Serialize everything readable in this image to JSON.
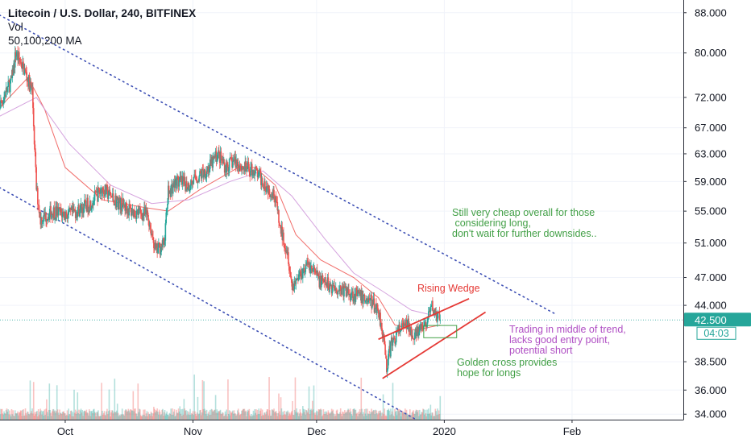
{
  "header": {
    "title": "Litecoin / U.S. Dollar, 240, BITFINEX",
    "indicator_volume": "Vol",
    "indicator_ma": "50,100,200 MA"
  },
  "price_tag": {
    "value": "42.500",
    "countdown": "04:03",
    "color": "#26a69a"
  },
  "annotations": {
    "cheap": "Still very cheap overall for those\n considering long,\ndon't wait for further downsides..",
    "wedge": "Rising Wedge",
    "trading": "Trading in middle of trend,\nlacks good entry point,\npotential short",
    "golden": "Golden cross provides\nhope for longs"
  },
  "colors": {
    "up": "#26a69a",
    "down": "#ef5350",
    "ma_fast": "#ef5350",
    "ma_slow": "#ce93d8",
    "channel": "#3f51b5",
    "wedge": "#e53935",
    "box": "#43a047"
  },
  "chart_data": {
    "type": "candlestick",
    "symbol": "Litecoin / U.S. Dollar",
    "interval": "240",
    "exchange": "BITFINEX",
    "y_scale": "log",
    "ylim": [
      33.5,
      90
    ],
    "y_ticks": [
      "88.000",
      "80.000",
      "72.000",
      "67.000",
      "63.000",
      "59.000",
      "55.000",
      "51.000",
      "47.000",
      "44.000",
      "38.500",
      "36.000",
      "34.000"
    ],
    "x_ticks": [
      "Oct",
      "Nov",
      "Dec",
      "2020",
      "Feb"
    ],
    "x_tick_dates": [
      "2019-10-01",
      "2019-11-01",
      "2019-12-01",
      "2020-01-01",
      "2020-02-01"
    ],
    "x_range": [
      "2019-09-14",
      "2020-02-28"
    ],
    "last_date": "2019-12-31",
    "last_price": 42.5,
    "price_path": [
      [
        "2019-09-14",
        69.0
      ],
      [
        "2019-09-18",
        75.0
      ],
      [
        "2019-09-19",
        80.0
      ],
      [
        "2019-09-21",
        77.0
      ],
      [
        "2019-09-23",
        73.0
      ],
      [
        "2019-09-24",
        58.0
      ],
      [
        "2019-09-25",
        54.0
      ],
      [
        "2019-09-28",
        55.0
      ],
      [
        "2019-10-02",
        54.5
      ],
      [
        "2019-10-07",
        56.0
      ],
      [
        "2019-10-10",
        58.0
      ],
      [
        "2019-10-13",
        56.5
      ],
      [
        "2019-10-17",
        55.0
      ],
      [
        "2019-10-21",
        54.5
      ],
      [
        "2019-10-23",
        50.0
      ],
      [
        "2019-10-25",
        51.0
      ],
      [
        "2019-10-26",
        57.5
      ],
      [
        "2019-10-28",
        59.0
      ],
      [
        "2019-10-31",
        58.5
      ],
      [
        "2019-11-02",
        59.5
      ],
      [
        "2019-11-05",
        61.0
      ],
      [
        "2019-11-07",
        63.0
      ],
      [
        "2019-11-09",
        61.0
      ],
      [
        "2019-11-11",
        62.0
      ],
      [
        "2019-11-13",
        61.0
      ],
      [
        "2019-11-16",
        60.5
      ],
      [
        "2019-11-18",
        59.0
      ],
      [
        "2019-11-21",
        57.0
      ],
      [
        "2019-11-22",
        53.0
      ],
      [
        "2019-11-24",
        50.0
      ],
      [
        "2019-11-25",
        46.0
      ],
      [
        "2019-11-27",
        47.5
      ],
      [
        "2019-11-29",
        48.5
      ],
      [
        "2019-12-02",
        46.5
      ],
      [
        "2019-12-05",
        46.0
      ],
      [
        "2019-12-08",
        45.5
      ],
      [
        "2019-12-11",
        45.0
      ],
      [
        "2019-12-14",
        44.5
      ],
      [
        "2019-12-16",
        43.5
      ],
      [
        "2019-12-17",
        41.5
      ],
      [
        "2019-12-18",
        38.0
      ],
      [
        "2019-12-19",
        40.0
      ],
      [
        "2019-12-21",
        41.5
      ],
      [
        "2019-12-23",
        42.0
      ],
      [
        "2019-12-25",
        41.0
      ],
      [
        "2019-12-27",
        41.8
      ],
      [
        "2019-12-28",
        42.5
      ],
      [
        "2019-12-29",
        43.8
      ],
      [
        "2019-12-30",
        43.0
      ],
      [
        "2019-12-31",
        42.5
      ]
    ],
    "series": [
      {
        "name": "50 MA",
        "points": [
          [
            "2019-09-14",
            69.5
          ],
          [
            "2019-09-22",
            75.5
          ],
          [
            "2019-09-26",
            70.0
          ],
          [
            "2019-10-01",
            61.0
          ],
          [
            "2019-10-10",
            56.5
          ],
          [
            "2019-10-20",
            55.5
          ],
          [
            "2019-10-26",
            55.0
          ],
          [
            "2019-11-03",
            58.0
          ],
          [
            "2019-11-12",
            61.0
          ],
          [
            "2019-11-16",
            61.0
          ],
          [
            "2019-11-21",
            58.5
          ],
          [
            "2019-11-26",
            52.0
          ],
          [
            "2019-12-02",
            49.0
          ],
          [
            "2019-12-10",
            47.0
          ],
          [
            "2019-12-16",
            44.8
          ],
          [
            "2019-12-20",
            42.0
          ],
          [
            "2019-12-25",
            41.5
          ],
          [
            "2019-12-31",
            42.0
          ]
        ]
      },
      {
        "name": "100 MA",
        "points": [
          [
            "2019-09-14",
            68.5
          ],
          [
            "2019-09-24",
            72.0
          ],
          [
            "2019-10-02",
            64.5
          ],
          [
            "2019-10-12",
            58.5
          ],
          [
            "2019-10-22",
            56.0
          ],
          [
            "2019-10-31",
            56.5
          ],
          [
            "2019-11-10",
            59.0
          ],
          [
            "2019-11-18",
            60.5
          ],
          [
            "2019-11-25",
            57.0
          ],
          [
            "2019-12-03",
            51.5
          ],
          [
            "2019-12-10",
            47.5
          ],
          [
            "2019-12-17",
            45.5
          ],
          [
            "2019-12-24",
            43.5
          ],
          [
            "2019-12-31",
            42.8
          ]
        ]
      }
    ],
    "annotations": [
      "Still very cheap overall for those considering long, don't wait for further downsides..",
      "Rising Wedge",
      "Trading in middle of trend, lacks good entry point, potential short",
      "Golden cross provides hope for longs"
    ]
  }
}
